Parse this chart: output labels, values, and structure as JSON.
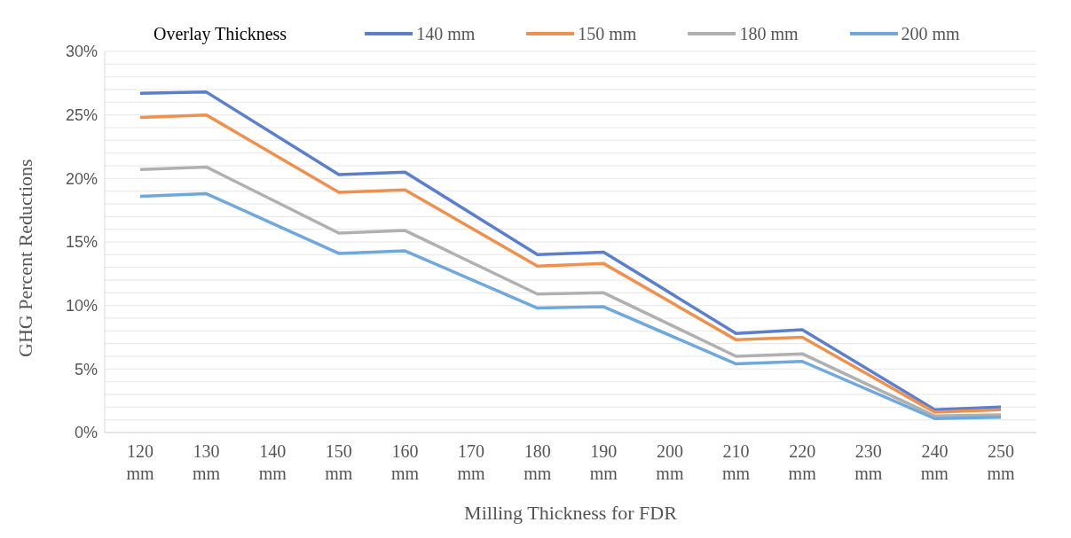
{
  "chart_data": {
    "type": "line",
    "xlabel": "Milling Thickness for FDR",
    "ylabel": "GHG Percent Reductions",
    "legend_title": "Overlay Thickness",
    "legend": "top right",
    "grid": "y",
    "marker": "none",
    "line_style": "solid",
    "categories": [
      "120 mm",
      "130 mm",
      "140 mm",
      "150 mm",
      "160 mm",
      "170 mm",
      "180 mm",
      "190 mm",
      "200 mm",
      "210 mm",
      "220 mm",
      "230 mm",
      "240 mm",
      "250 mm"
    ],
    "ylim": [
      0,
      30
    ],
    "yticks": [
      {
        "value": 0,
        "label": "0%"
      },
      {
        "value": 1,
        "label": null
      },
      {
        "value": 2,
        "label": null
      },
      {
        "value": 3,
        "label": null
      },
      {
        "value": 4,
        "label": null
      },
      {
        "value": 5,
        "label": "5%"
      },
      {
        "value": 6,
        "label": null
      },
      {
        "value": 7,
        "label": null
      },
      {
        "value": 8,
        "label": null
      },
      {
        "value": 9,
        "label": null
      },
      {
        "value": 10,
        "label": "10%"
      },
      {
        "value": 11,
        "label": null
      },
      {
        "value": 12,
        "label": null
      },
      {
        "value": 13,
        "label": null
      },
      {
        "value": 14,
        "label": null
      },
      {
        "value": 15,
        "label": "15%"
      },
      {
        "value": 16,
        "label": null
      },
      {
        "value": 17,
        "label": null
      },
      {
        "value": 18,
        "label": null
      },
      {
        "value": 19,
        "label": null
      },
      {
        "value": 20,
        "label": "20%"
      },
      {
        "value": 21,
        "label": null
      },
      {
        "value": 22,
        "label": null
      },
      {
        "value": 23,
        "label": null
      },
      {
        "value": 24,
        "label": null
      },
      {
        "value": 25,
        "label": "25%"
      },
      {
        "value": 26,
        "label": null
      },
      {
        "value": 27,
        "label": null
      },
      {
        "value": 28,
        "label": null
      },
      {
        "value": 29,
        "label": null
      },
      {
        "value": 30,
        "label": "30%"
      }
    ],
    "series": [
      {
        "name": "140 mm",
        "color": "#5b7fcc",
        "values": [
          26.7,
          26.8,
          null,
          20.3,
          20.5,
          null,
          14.0,
          14.2,
          null,
          7.8,
          8.1,
          null,
          1.8,
          2.0
        ]
      },
      {
        "name": "150 mm",
        "color": "#f0904e",
        "values": [
          24.8,
          25.0,
          null,
          18.9,
          19.1,
          null,
          13.1,
          13.3,
          null,
          7.3,
          7.5,
          null,
          1.6,
          1.8
        ]
      },
      {
        "name": "180 mm",
        "color": "#b0b0b0",
        "values": [
          20.7,
          20.9,
          null,
          15.7,
          15.9,
          null,
          10.9,
          11.0,
          null,
          6.0,
          6.2,
          null,
          1.3,
          1.4
        ]
      },
      {
        "name": "200 mm",
        "color": "#6fa8dc",
        "values": [
          18.6,
          18.8,
          null,
          14.1,
          14.3,
          null,
          9.8,
          9.9,
          null,
          5.4,
          5.6,
          null,
          1.1,
          1.2
        ]
      }
    ]
  }
}
